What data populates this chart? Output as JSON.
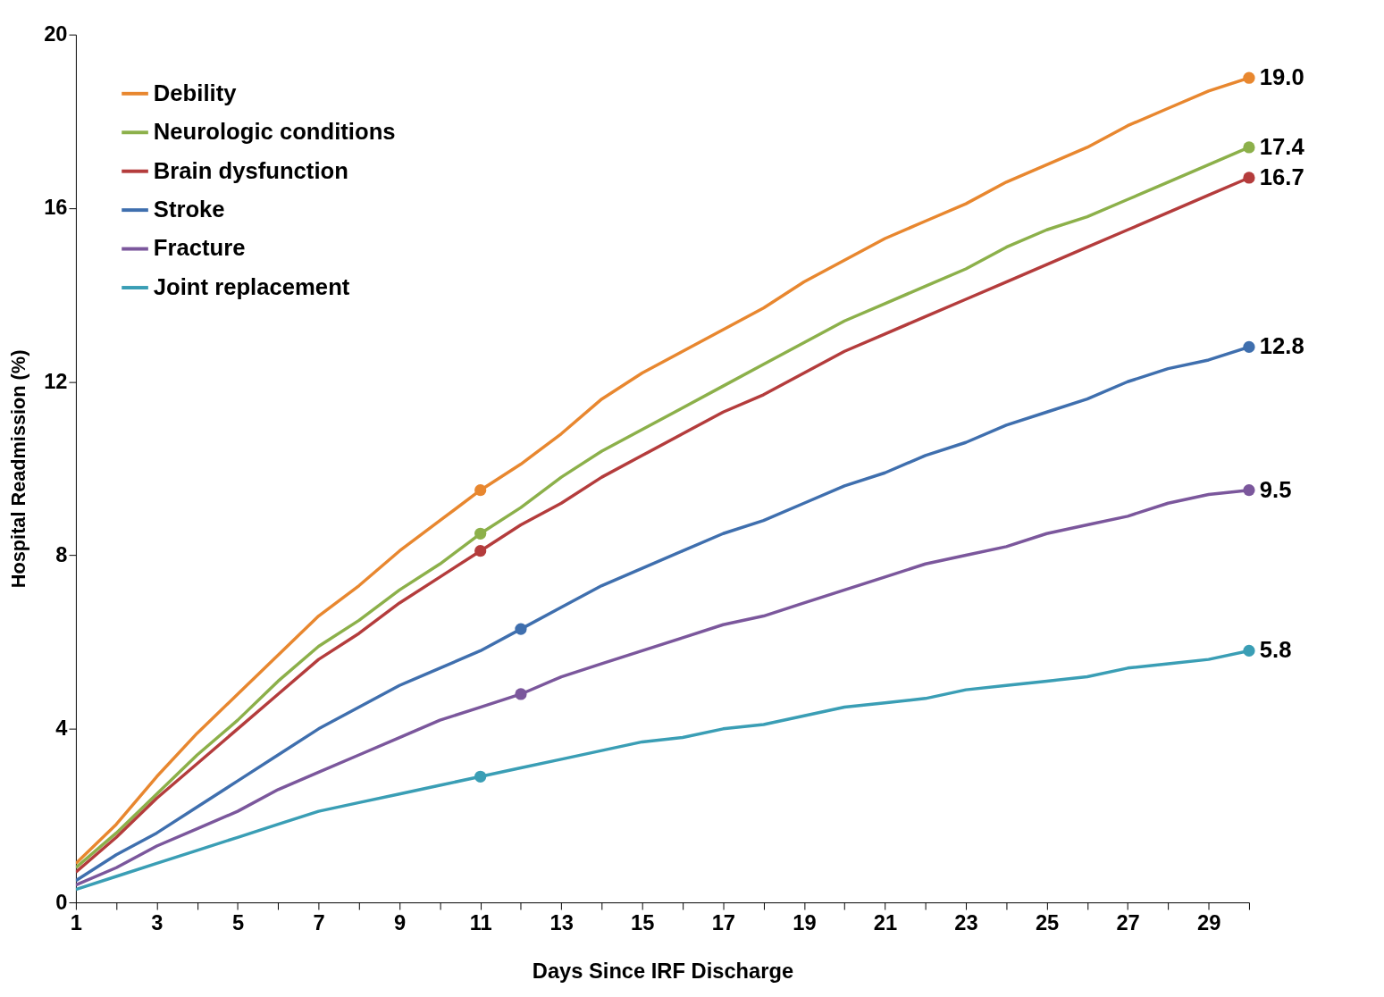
{
  "chart_data": {
    "type": "line",
    "xlabel": "Days Since IRF Discharge",
    "ylabel": "Hospital Readmission (%)",
    "x": [
      1,
      2,
      3,
      4,
      5,
      6,
      7,
      8,
      9,
      10,
      11,
      12,
      13,
      14,
      15,
      16,
      17,
      18,
      19,
      20,
      21,
      22,
      23,
      24,
      25,
      26,
      27,
      28,
      29,
      30
    ],
    "series": [
      {
        "name": "Debility",
        "color": "#e8872f",
        "values": [
          0.9,
          1.8,
          2.9,
          3.9,
          4.8,
          5.7,
          6.6,
          7.3,
          8.1,
          8.8,
          9.5,
          10.1,
          10.8,
          11.6,
          12.2,
          12.7,
          13.2,
          13.7,
          14.3,
          14.8,
          15.3,
          15.7,
          16.1,
          16.6,
          17.0,
          17.4,
          17.9,
          18.3,
          18.7,
          19.0
        ]
      },
      {
        "name": "Neurologic conditions",
        "color": "#8cb04a",
        "values": [
          0.8,
          1.6,
          2.5,
          3.4,
          4.2,
          5.1,
          5.9,
          6.5,
          7.2,
          7.8,
          8.5,
          9.1,
          9.8,
          10.4,
          10.9,
          11.4,
          11.9,
          12.4,
          12.9,
          13.4,
          13.8,
          14.2,
          14.6,
          15.1,
          15.5,
          15.8,
          16.2,
          16.6,
          17.0,
          17.4
        ]
      },
      {
        "name": "Brain dysfunction",
        "color": "#b43c3c",
        "values": [
          0.7,
          1.5,
          2.4,
          3.2,
          4.0,
          4.8,
          5.6,
          6.2,
          6.9,
          7.5,
          8.1,
          8.7,
          9.2,
          9.8,
          10.3,
          10.8,
          11.3,
          11.7,
          12.2,
          12.7,
          13.1,
          13.5,
          13.9,
          14.3,
          14.7,
          15.1,
          15.5,
          15.9,
          16.3,
          16.7
        ]
      },
      {
        "name": "Stroke",
        "color": "#3f6fae",
        "values": [
          0.5,
          1.1,
          1.6,
          2.2,
          2.8,
          3.4,
          4.0,
          4.5,
          5.0,
          5.4,
          5.8,
          6.3,
          6.8,
          7.3,
          7.7,
          8.1,
          8.5,
          8.8,
          9.2,
          9.6,
          9.9,
          10.3,
          10.6,
          11.0,
          11.3,
          11.6,
          12.0,
          12.3,
          12.5,
          12.8
        ]
      },
      {
        "name": "Fracture",
        "color": "#7b579c",
        "values": [
          0.4,
          0.8,
          1.3,
          1.7,
          2.1,
          2.6,
          3.0,
          3.4,
          3.8,
          4.2,
          4.5,
          4.8,
          5.2,
          5.5,
          5.8,
          6.1,
          6.4,
          6.6,
          6.9,
          7.2,
          7.5,
          7.8,
          8.0,
          8.2,
          8.5,
          8.7,
          8.9,
          9.2,
          9.4,
          9.5
        ]
      },
      {
        "name": "Joint replacement",
        "color": "#3a9eb5",
        "values": [
          0.3,
          0.6,
          0.9,
          1.2,
          1.5,
          1.8,
          2.1,
          2.3,
          2.5,
          2.7,
          2.9,
          3.1,
          3.3,
          3.5,
          3.7,
          3.8,
          4.0,
          4.1,
          4.3,
          4.5,
          4.6,
          4.7,
          4.9,
          5.0,
          5.1,
          5.2,
          5.4,
          5.5,
          5.6,
          5.8
        ]
      },
      {
        "type": "scatter",
        "marker": "circle",
        "color": "#e8872f",
        "x": [
          11,
          30
        ],
        "values": [
          9.5,
          19.0
        ],
        "value_labels": [
          null,
          "19.0"
        ]
      },
      {
        "type": "scatter",
        "marker": "circle",
        "color": "#8cb04a",
        "x": [
          11,
          30
        ],
        "values": [
          8.5,
          17.4
        ],
        "value_labels": [
          null,
          "17.4"
        ]
      },
      {
        "type": "scatter",
        "marker": "circle",
        "color": "#b43c3c",
        "x": [
          11,
          30
        ],
        "values": [
          8.1,
          16.7
        ],
        "value_labels": [
          null,
          "16.7"
        ]
      },
      {
        "type": "scatter",
        "marker": "circle",
        "color": "#3f6fae",
        "x": [
          12,
          30
        ],
        "values": [
          6.3,
          12.8
        ],
        "value_labels": [
          null,
          "12.8"
        ]
      },
      {
        "type": "scatter",
        "marker": "circle",
        "color": "#7b579c",
        "x": [
          12,
          30
        ],
        "values": [
          4.8,
          9.5
        ],
        "value_labels": [
          null,
          "9.5"
        ]
      },
      {
        "type": "scatter",
        "marker": "circle",
        "color": "#3a9eb5",
        "x": [
          11,
          30
        ],
        "values": [
          2.9,
          5.8
        ],
        "value_labels": [
          null,
          "5.8"
        ]
      }
    ],
    "xlim": [
      1,
      30
    ],
    "xticks": [
      1,
      {
        "value": 2,
        "label": null
      },
      3,
      {
        "value": 4,
        "label": null
      },
      5,
      {
        "value": 6,
        "label": null
      },
      7,
      {
        "value": 8,
        "label": null
      },
      9,
      {
        "value": 10,
        "label": null
      },
      11,
      {
        "value": 12,
        "label": null
      },
      13,
      {
        "value": 14,
        "label": null
      },
      15,
      {
        "value": 16,
        "label": null
      },
      17,
      {
        "value": 18,
        "label": null
      },
      19,
      {
        "value": 20,
        "label": null
      },
      21,
      {
        "value": 22,
        "label": null
      },
      23,
      {
        "value": 24,
        "label": null
      },
      25,
      {
        "value": 26,
        "label": null
      },
      27,
      {
        "value": 28,
        "label": null
      },
      29,
      {
        "value": 30,
        "label": null
      }
    ],
    "ylim": [
      0,
      20
    ],
    "yticks": [
      0,
      4,
      8,
      12,
      16,
      20
    ],
    "grid": false,
    "legend": "top left",
    "marker": "none",
    "line_style": "solid"
  }
}
